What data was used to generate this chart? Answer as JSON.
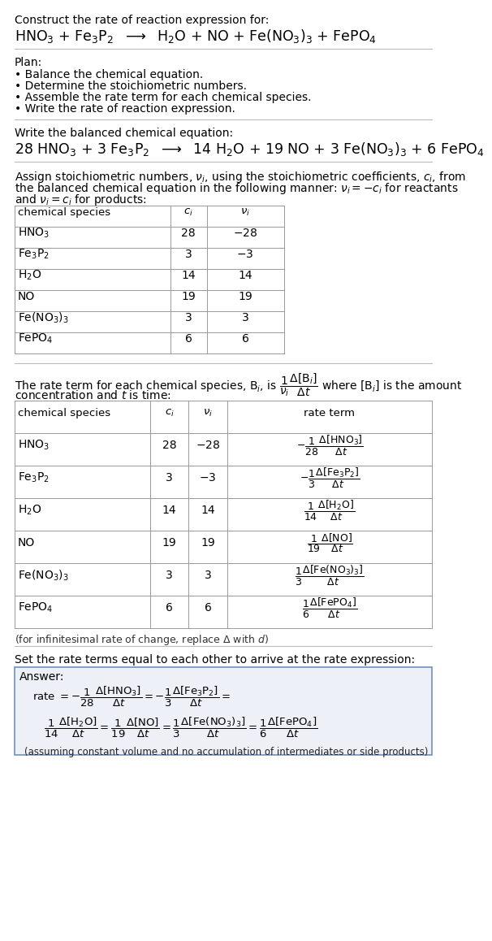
{
  "bg_color": "#ffffff",
  "text_color": "#000000",
  "line_color": "#cccccc",
  "answer_box_bg": "#eef0f8",
  "answer_box_border": "#7090c0",
  "title_text": "Construct the rate of reaction expression for:",
  "reaction_unbalanced": "HNO$_3$ + Fe$_3$P$_2$  $\\longrightarrow$  H$_2$O + NO + Fe(NO$_3$)$_3$ + FePO$_4$",
  "plan_header": "Plan:",
  "plan_items": [
    "\\textbf{\\bullet} Balance the chemical equation.",
    "\\textbf{\\bullet} Determine the stoichiometric numbers.",
    "\\textbf{\\bullet} Assemble the rate term for each chemical species.",
    "\\textbf{\\bullet} Write the rate of reaction expression."
  ],
  "balanced_header": "Write the balanced chemical equation:",
  "reaction_balanced": "28 HNO$_3$ + 3 Fe$_3$P$_2$  $\\longrightarrow$  14 H$_2$O + 19 NO + 3 Fe(NO$_3$)$_3$ + 6 FePO$_4$",
  "stoich_intro_l1": "Assign stoichiometric numbers, $\\nu_i$, using the stoichiometric coefficients, $c_i$, from",
  "stoich_intro_l2": "the balanced chemical equation in the following manner: $\\nu_i = -c_i$ for reactants",
  "stoich_intro_l3": "and $\\nu_i = c_i$ for products:",
  "table1_col_header": [
    "chemical species",
    "$c_i$",
    "$\\nu_i$"
  ],
  "table1_rows": [
    [
      "HNO$_3$",
      "28",
      "$-28$"
    ],
    [
      "Fe$_3$P$_2$",
      "3",
      "$-3$"
    ],
    [
      "H$_2$O",
      "14",
      "14"
    ],
    [
      "NO",
      "19",
      "19"
    ],
    [
      "Fe(NO$_3$)$_3$",
      "3",
      "3"
    ],
    [
      "FePO$_4$",
      "6",
      "6"
    ]
  ],
  "rate_intro_l1": "The rate term for each chemical species, B$_i$, is $\\dfrac{1}{\\nu_i}\\dfrac{\\Delta[\\mathrm{B}_i]}{\\Delta t}$ where [B$_i$] is the amount",
  "rate_intro_l2": "concentration and $t$ is time:",
  "table2_col_header": [
    "chemical species",
    "$c_i$",
    "$\\nu_i$",
    "rate term"
  ],
  "table2_rows": [
    [
      "HNO$_3$",
      "28",
      "$-28$",
      "$-\\dfrac{1}{28}\\dfrac{\\Delta[\\mathrm{HNO_3}]}{\\Delta t}$"
    ],
    [
      "Fe$_3$P$_2$",
      "3",
      "$-3$",
      "$-\\dfrac{1}{3}\\dfrac{\\Delta[\\mathrm{Fe_3P_2}]}{\\Delta t}$"
    ],
    [
      "H$_2$O",
      "14",
      "14",
      "$\\dfrac{1}{14}\\dfrac{\\Delta[\\mathrm{H_2O}]}{\\Delta t}$"
    ],
    [
      "NO",
      "19",
      "19",
      "$\\dfrac{1}{19}\\dfrac{\\Delta[\\mathrm{NO}]}{\\Delta t}$"
    ],
    [
      "Fe(NO$_3$)$_3$",
      "3",
      "3",
      "$\\dfrac{1}{3}\\dfrac{\\Delta[\\mathrm{Fe(NO_3)_3}]}{\\Delta t}$"
    ],
    [
      "FePO$_4$",
      "6",
      "6",
      "$\\dfrac{1}{6}\\dfrac{\\Delta[\\mathrm{FePO_4}]}{\\Delta t}$"
    ]
  ],
  "infinitesimal_note": "(for infinitesimal rate of change, replace $\\Delta$ with $d$)",
  "set_equal_text": "Set the rate terms equal to each other to arrive at the rate expression:",
  "answer_label": "Answer:",
  "ans_rate_l1": "rate $= -\\dfrac{1}{28}\\dfrac{\\Delta[\\mathrm{HNO_3}]}{\\Delta t} = -\\dfrac{1}{3}\\dfrac{\\Delta[\\mathrm{Fe_3P_2}]}{\\Delta t} =$",
  "ans_rate_l2": "$\\dfrac{1}{14}\\dfrac{\\Delta[\\mathrm{H_2O}]}{\\Delta t} = \\dfrac{1}{19}\\dfrac{\\Delta[\\mathrm{NO}]}{\\Delta t} = \\dfrac{1}{3}\\dfrac{\\Delta[\\mathrm{Fe(NO_3)_3}]}{\\Delta t} = \\dfrac{1}{6}\\dfrac{\\Delta[\\mathrm{FePO_4}]}{\\Delta t}$",
  "ans_note": "(assuming constant volume and no accumulation of intermediates or side products)"
}
